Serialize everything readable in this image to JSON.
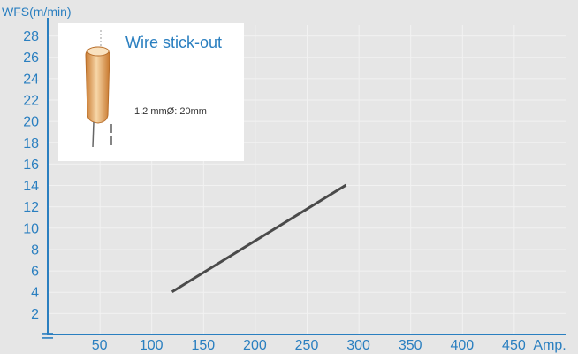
{
  "inset": {
    "title": "Wire stick-out",
    "spec": "1.2 mmØ: 20mm"
  },
  "colors": {
    "axis": "#2a7fc0",
    "background": "#e6e6e6",
    "grid": "#f2f2f2",
    "line": "#4a4a4a",
    "tip": "#e8a85a"
  },
  "chart_data": {
    "type": "line",
    "ylabel": "WFS(m/min)",
    "xlabel": "Amp.",
    "x_ticks": [
      50,
      100,
      150,
      200,
      250,
      300,
      350,
      400,
      450
    ],
    "y_ticks": [
      2,
      4,
      6,
      8,
      10,
      12,
      14,
      16,
      18,
      20,
      22,
      24,
      26,
      28
    ],
    "xlim": [
      0,
      500
    ],
    "ylim": [
      0,
      29
    ],
    "y_axis_break": true,
    "grid": true,
    "series": [
      {
        "x": [
          120,
          288
        ],
        "y": [
          4,
          14
        ]
      }
    ]
  }
}
